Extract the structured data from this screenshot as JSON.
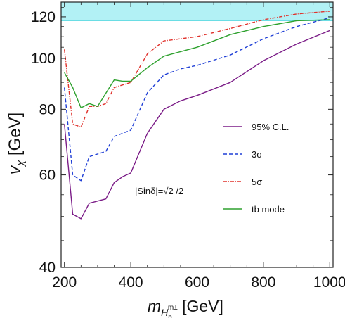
{
  "chart_data": {
    "type": "line",
    "title": "",
    "xlabel": {
      "base": "m",
      "sub": "H",
      "subsub": "5",
      "sup": "m±",
      "unit": " [GeV]"
    },
    "ylabel": {
      "base": "v",
      "sub": "χ",
      "unit": " [GeV]"
    },
    "xlim": [
      190,
      1010
    ],
    "ylim": [
      40,
      128
    ],
    "yscale": "log",
    "xticks": [
      200,
      400,
      600,
      800,
      1000
    ],
    "xtick_labels": [
      "200",
      "400",
      "600",
      "800",
      "1000"
    ],
    "yticks": [
      40,
      60,
      80,
      100,
      120
    ],
    "ytick_labels": [
      "40",
      "60",
      "80",
      "100",
      "120"
    ],
    "grid": false,
    "legend_position": "lower-right",
    "excluded_band": {
      "y_from": 118,
      "y_to": 128,
      "color": "#b2f1f5",
      "edge_color": "#55d8e0"
    },
    "annotation": "|Sinδ|=√2 /2",
    "series": [
      {
        "name": "95% C.L.",
        "color": "#7b1c87",
        "dash": "solid",
        "x": [
          200,
          225,
          250,
          275,
          325,
          350,
          375,
          400,
          450,
          500,
          550,
          600,
          700,
          800,
          900,
          1000
        ],
        "y": [
          75,
          50.5,
          49.5,
          53,
          54,
          58,
          59.5,
          60.5,
          72,
          80,
          83,
          85,
          90,
          99,
          106.5,
          113
        ]
      },
      {
        "name": "3σ",
        "color": "#1f3fd6",
        "dash": "5,3",
        "x": [
          200,
          225,
          250,
          275,
          325,
          350,
          375,
          400,
          450,
          500,
          550,
          600,
          700,
          800,
          900,
          1000
        ],
        "y": [
          88,
          60,
          58.5,
          65,
          66.5,
          71,
          72,
          73,
          86,
          93,
          95.5,
          97,
          101.5,
          109,
          115,
          119.5
        ]
      },
      {
        "name": "5σ",
        "color": "#e0322c",
        "dash": "5,2,1,2",
        "x": [
          200,
          225,
          250,
          275,
          300,
          325,
          350,
          375,
          400,
          450,
          500,
          550,
          600,
          700,
          800,
          900,
          1000
        ],
        "y": [
          104,
          75,
          74,
          81,
          81,
          82,
          88,
          89,
          90,
          102,
          108,
          109,
          110,
          114,
          118.5,
          121.5,
          123
        ]
      },
      {
        "name": "tb mode",
        "color": "#2ea12e",
        "dash": "solid",
        "x": [
          200,
          225,
          250,
          275,
          300,
          350,
          375,
          400,
          450,
          500,
          550,
          600,
          700,
          800,
          900,
          1000
        ],
        "y": [
          94,
          88,
          80.5,
          82,
          81,
          91,
          90.5,
          90.5,
          96,
          101,
          103,
          105,
          111,
          115,
          118,
          118.5
        ]
      }
    ]
  }
}
